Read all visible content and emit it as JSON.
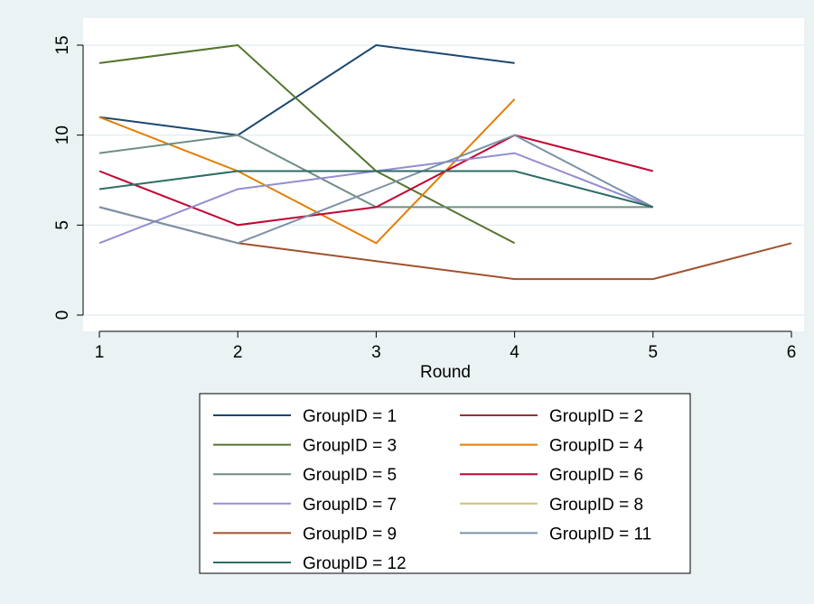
{
  "chart_data": {
    "type": "line",
    "title": "",
    "xlabel": "Round",
    "ylabel": "",
    "xlim": [
      1,
      6
    ],
    "ylim": [
      0,
      15
    ],
    "x_ticks": [
      "1",
      "2",
      "3",
      "4",
      "5",
      "6"
    ],
    "y_ticks": [
      "0",
      "5",
      "10",
      "15"
    ],
    "grid": "horizontal",
    "legend_position": "bottom",
    "legend_columns": 2,
    "plot_background": "#ffffff",
    "page_background": "#eaf2f3",
    "series": [
      {
        "name": "GroupID = 1",
        "color": "#1a476f",
        "x": [
          1,
          2,
          3,
          4
        ],
        "values": [
          11,
          10,
          15,
          14
        ]
      },
      {
        "name": "GroupID = 2",
        "color": "#90353b",
        "x": [],
        "values": []
      },
      {
        "name": "GroupID = 3",
        "color": "#55752f",
        "x": [
          1,
          2,
          3,
          4
        ],
        "values": [
          14,
          15,
          8,
          4
        ]
      },
      {
        "name": "GroupID = 4",
        "color": "#e37e00",
        "x": [
          1,
          2,
          3,
          4
        ],
        "values": [
          11,
          8,
          4,
          12
        ]
      },
      {
        "name": "GroupID = 5",
        "color": "#6e8e84",
        "x": [
          1,
          2,
          3,
          4,
          5
        ],
        "values": [
          9,
          10,
          6,
          6,
          6
        ]
      },
      {
        "name": "GroupID = 6",
        "color": "#c10534",
        "x": [
          1,
          2,
          3,
          4,
          5
        ],
        "values": [
          8,
          5,
          6,
          10,
          8
        ]
      },
      {
        "name": "GroupID = 7",
        "color": "#938dd2",
        "x": [
          1,
          2,
          3,
          4,
          5
        ],
        "values": [
          4,
          7,
          8,
          9,
          6
        ]
      },
      {
        "name": "GroupID = 8",
        "color": "#cac27e",
        "x": [],
        "values": []
      },
      {
        "name": "GroupID = 9",
        "color": "#a0522d",
        "x": [
          1,
          2,
          3,
          4,
          5,
          6
        ],
        "values": [
          6,
          4,
          3,
          2,
          2,
          4
        ]
      },
      {
        "name": "GroupID = 11",
        "color": "#7b92a8",
        "x": [
          1,
          2,
          3,
          4,
          5
        ],
        "values": [
          6,
          4,
          7,
          10,
          6
        ]
      },
      {
        "name": "GroupID = 12",
        "color": "#2d6d66",
        "x": [
          1,
          2,
          3,
          4,
          5
        ],
        "values": [
          7,
          8,
          8,
          8,
          6
        ]
      }
    ]
  }
}
